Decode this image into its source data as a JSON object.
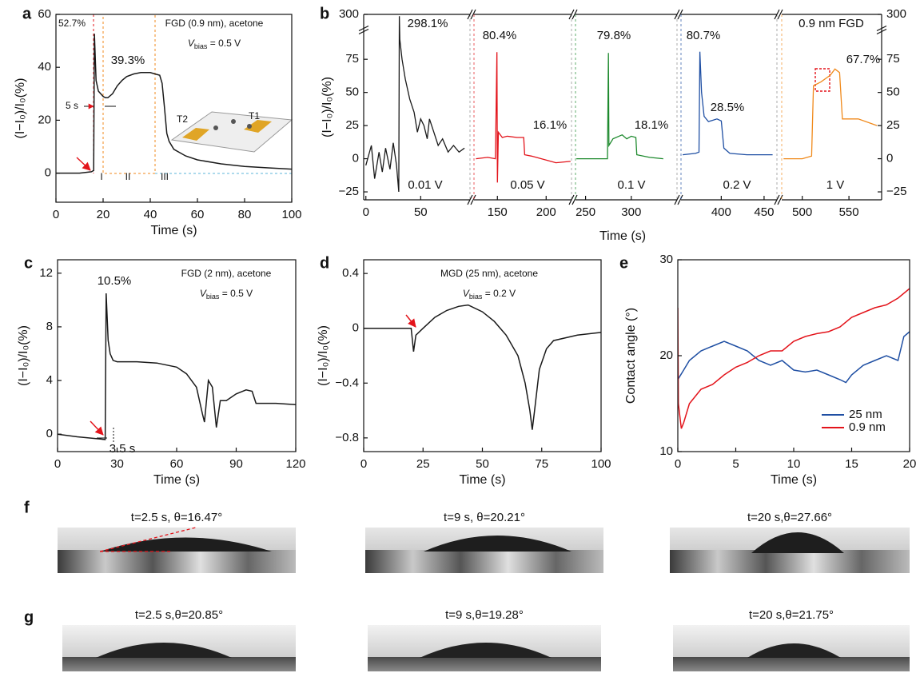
{
  "chart_data": [
    {
      "panel": "a",
      "type": "line",
      "title": "FGD (0.9 nm), acetone",
      "bias": {
        "symbol": "V",
        "subscript": "bias",
        "text": " = 0.5 V"
      },
      "xlabel": "Time (s)",
      "ylabel": "(I−I₀)/I₀(%)",
      "xlim": [
        0,
        100
      ],
      "ylim": [
        -11,
        60
      ],
      "xticks": [
        0,
        20,
        40,
        60,
        80,
        100
      ],
      "yticks": [
        0,
        20,
        40,
        60
      ],
      "series": [
        {
          "color": "#1a1a1a",
          "x": [
            0,
            10,
            15,
            16,
            16.3,
            17,
            18,
            19,
            20,
            21,
            22,
            24,
            26,
            28,
            30,
            33,
            36,
            40,
            42,
            44,
            45,
            46,
            47,
            48,
            50,
            55,
            60,
            70,
            80,
            90,
            100
          ],
          "values": [
            0,
            0,
            0.5,
            1,
            52.7,
            35,
            31,
            30,
            29,
            28.5,
            28.5,
            30,
            33,
            35,
            36.5,
            37.5,
            38,
            38,
            37.5,
            37,
            34,
            25,
            15,
            12,
            9,
            6.5,
            5,
            3.5,
            2.5,
            2,
            1.5
          ]
        }
      ],
      "annotations": [
        "52.7%",
        "39.3%",
        "5 s",
        "I",
        "II",
        "III",
        "T1",
        "T2"
      ]
    },
    {
      "panel": "b",
      "type": "broken-line",
      "xlabel": "Time (s)",
      "ylabel": "(I−I₀)/I₀(%)",
      "ylim": [
        -31,
        300
      ],
      "ybreak": [
        95,
        290
      ],
      "yticks": [
        {
          "value": -25,
          "label": "−25"
        },
        0,
        25,
        50,
        75,
        300
      ],
      "annotations": [
        "0.9 nm FGD"
      ],
      "segments": [
        {
          "xlim": [
            -2,
            95
          ],
          "xticks": [
            0,
            50
          ],
          "annotations": [
            "298.1%"
          ],
          "series": [
            {
              "name": "0.01 V",
              "color": "#1a1a1a",
              "x": [
                0,
                5,
                8,
                12,
                15,
                18,
                22,
                25,
                28,
                30,
                30.5,
                31,
                33,
                36,
                40,
                44,
                47,
                50,
                53,
                56,
                58,
                62,
                66,
                70,
                75,
                80,
                85,
                90
              ],
              "values": [
                -5,
                10,
                -15,
                5,
                -10,
                8,
                -8,
                12,
                -5,
                -25,
                298.1,
                90,
                75,
                60,
                45,
                35,
                20,
                30,
                25,
                15,
                30,
                20,
                10,
                15,
                5,
                10,
                5,
                8
              ]
            }
          ]
        },
        {
          "xlim": [
            126,
            226
          ],
          "xticks": [
            150,
            200
          ],
          "annotations": [
            "80.4%",
            "16.1%"
          ],
          "series": [
            {
              "name": "0.05 V",
              "color": "#e3141b",
              "x": [
                128,
                140,
                148,
                149.5,
                150,
                151,
                155,
                160,
                170,
                177,
                178,
                185,
                200,
                210,
                225
              ],
              "values": [
                0,
                1,
                0,
                80.4,
                -18,
                20,
                16,
                17,
                16,
                16,
                3,
                2,
                -1,
                -3,
                -2
              ]
            }
          ]
        },
        {
          "xlim": [
            239,
            350
          ],
          "xticks": [
            250,
            300
          ],
          "annotations": [
            "79.8%",
            "18.1%"
          ],
          "series": [
            {
              "name": "0.1 V",
              "color": "#1e8a2e",
              "x": [
                240,
                260,
                274,
                275,
                275.5,
                280,
                290,
                295,
                300,
                305,
                306,
                320,
                335
              ],
              "values": [
                0,
                0,
                0,
                79.8,
                10,
                15,
                18,
                15,
                17,
                16,
                3,
                1,
                0
              ]
            }
          ]
        },
        {
          "xlim": [
            353,
            465
          ],
          "xticks": [
            400,
            450
          ],
          "annotations": [
            "80.7%",
            "28.5%"
          ],
          "series": [
            {
              "name": "0.2 V",
              "color": "#1f4fa3",
              "x": [
                355,
                370,
                374,
                375,
                377,
                380,
                385,
                390,
                395,
                400,
                403,
                410,
                430,
                460
              ],
              "values": [
                3,
                4,
                5,
                80.7,
                50,
                32,
                28,
                29,
                30,
                28.5,
                8,
                4,
                3,
                3
              ]
            }
          ]
        },
        {
          "xlim": [
            478,
            585
          ],
          "xticks": [
            500,
            550
          ],
          "annotations": [
            "67.7%"
          ],
          "series": [
            {
              "name": "1 V",
              "color": "#f08a1c",
              "x": [
                480,
                500,
                510,
                512,
                520,
                530,
                535,
                540,
                543,
                560,
                580
              ],
              "values": [
                0,
                0,
                2,
                55,
                58,
                63,
                67.7,
                65,
                30,
                30,
                25
              ]
            }
          ]
        }
      ]
    },
    {
      "panel": "c",
      "type": "line",
      "title": "FGD (2 nm), acetone",
      "bias": {
        "symbol": "V",
        "subscript": "bias",
        "text": " = 0.5 V"
      },
      "xlabel": "Time (s)",
      "ylabel": "(I−I₀)/I₀(%)",
      "xlim": [
        0,
        120
      ],
      "ylim": [
        -1.3,
        13
      ],
      "xticks": [
        0,
        30,
        60,
        90,
        120
      ],
      "yticks": [
        0,
        4,
        8,
        12
      ],
      "series": [
        {
          "color": "#1a1a1a",
          "x": [
            0,
            10,
            24,
            24.5,
            25.5,
            26.5,
            28,
            30,
            40,
            50,
            60,
            65,
            70,
            73,
            74,
            76,
            78,
            80,
            82,
            85,
            90,
            95,
            98,
            100,
            110,
            120
          ],
          "values": [
            0,
            -0.2,
            -0.4,
            10.5,
            7,
            6,
            5.5,
            5.4,
            5.4,
            5.3,
            5,
            4.5,
            3.5,
            1.5,
            0.9,
            4,
            3.5,
            0.5,
            2.5,
            2.5,
            3,
            3.3,
            3.2,
            2.3,
            2.3,
            2.2
          ]
        }
      ],
      "annotations": [
        "10.5%",
        "3.5 s"
      ]
    },
    {
      "panel": "d",
      "type": "line",
      "title": "MGD (25 nm), acetone",
      "bias": {
        "symbol": "V",
        "subscript": "bias",
        "text": " = 0.2 V"
      },
      "xlabel": "Time (s)",
      "ylabel": "(I−I₀)/I₀(%)",
      "xlim": [
        0,
        100
      ],
      "ylim": [
        -0.9,
        0.5
      ],
      "xticks": [
        0,
        25,
        50,
        75,
        100
      ],
      "yticks": [
        {
          "value": -0.8,
          "label": "−0.8"
        },
        {
          "value": -0.4,
          "label": "−0.4"
        },
        0,
        0.4
      ],
      "series": [
        {
          "color": "#1a1a1a",
          "x": [
            0,
            10,
            20,
            21,
            22,
            25,
            30,
            35,
            40,
            44,
            50,
            55,
            60,
            65,
            68,
            70,
            71,
            72,
            74,
            77,
            80,
            90,
            100
          ],
          "values": [
            0,
            0,
            0,
            -0.17,
            -0.05,
            0,
            0.08,
            0.13,
            0.16,
            0.17,
            0.12,
            0.05,
            -0.05,
            -0.2,
            -0.4,
            -0.6,
            -0.74,
            -0.6,
            -0.3,
            -0.15,
            -0.09,
            -0.05,
            -0.03
          ]
        }
      ]
    },
    {
      "panel": "e",
      "type": "line",
      "xlabel": "Time (s)",
      "ylabel": "Contact angle (°)",
      "xlim": [
        0,
        20
      ],
      "ylim": [
        10,
        30
      ],
      "xticks": [
        0,
        5,
        10,
        15,
        20
      ],
      "yticks": [
        10,
        20,
        30
      ],
      "legend": "lower right",
      "series": [
        {
          "name": "25 nm",
          "color": "#1f4fa3",
          "x": [
            0,
            0.5,
            1,
            2,
            3,
            4,
            5,
            6,
            7,
            8,
            9,
            10,
            11,
            12,
            13,
            14,
            14.5,
            15,
            16,
            17,
            18,
            19,
            19.5,
            20
          ],
          "values": [
            17.5,
            18.5,
            19.5,
            20.5,
            21,
            21.5,
            21,
            20.5,
            19.5,
            19,
            19.5,
            18.5,
            18.3,
            18.5,
            18,
            17.5,
            17.2,
            18,
            19,
            19.5,
            20,
            19.5,
            22,
            22.5
          ]
        },
        {
          "name": "0.9 nm",
          "color": "#e3141b",
          "x": [
            0,
            0.05,
            0.3,
            0.5,
            1,
            2,
            3,
            4,
            5,
            6,
            7,
            8,
            9,
            10,
            11,
            12,
            13,
            14,
            15,
            16,
            17,
            18,
            19,
            20
          ],
          "values": [
            25,
            15,
            12.4,
            13,
            15,
            16.5,
            17,
            18,
            18.8,
            19.3,
            20,
            20.5,
            20.5,
            21.5,
            22,
            22.3,
            22.5,
            23,
            24,
            24.5,
            25,
            25.3,
            26,
            27
          ]
        }
      ]
    }
  ],
  "photos": [
    {
      "label": "f",
      "captions": [
        "t=2.5 s, θ=16.47°",
        "t=9 s, θ=20.21°",
        "t=20 s,θ=27.66°"
      ]
    },
    {
      "label": "g",
      "captions": [
        "t=2.5 s,θ=20.85°",
        "t=9 s,θ=19.28°",
        "t=20 s,θ=21.75°"
      ]
    }
  ]
}
